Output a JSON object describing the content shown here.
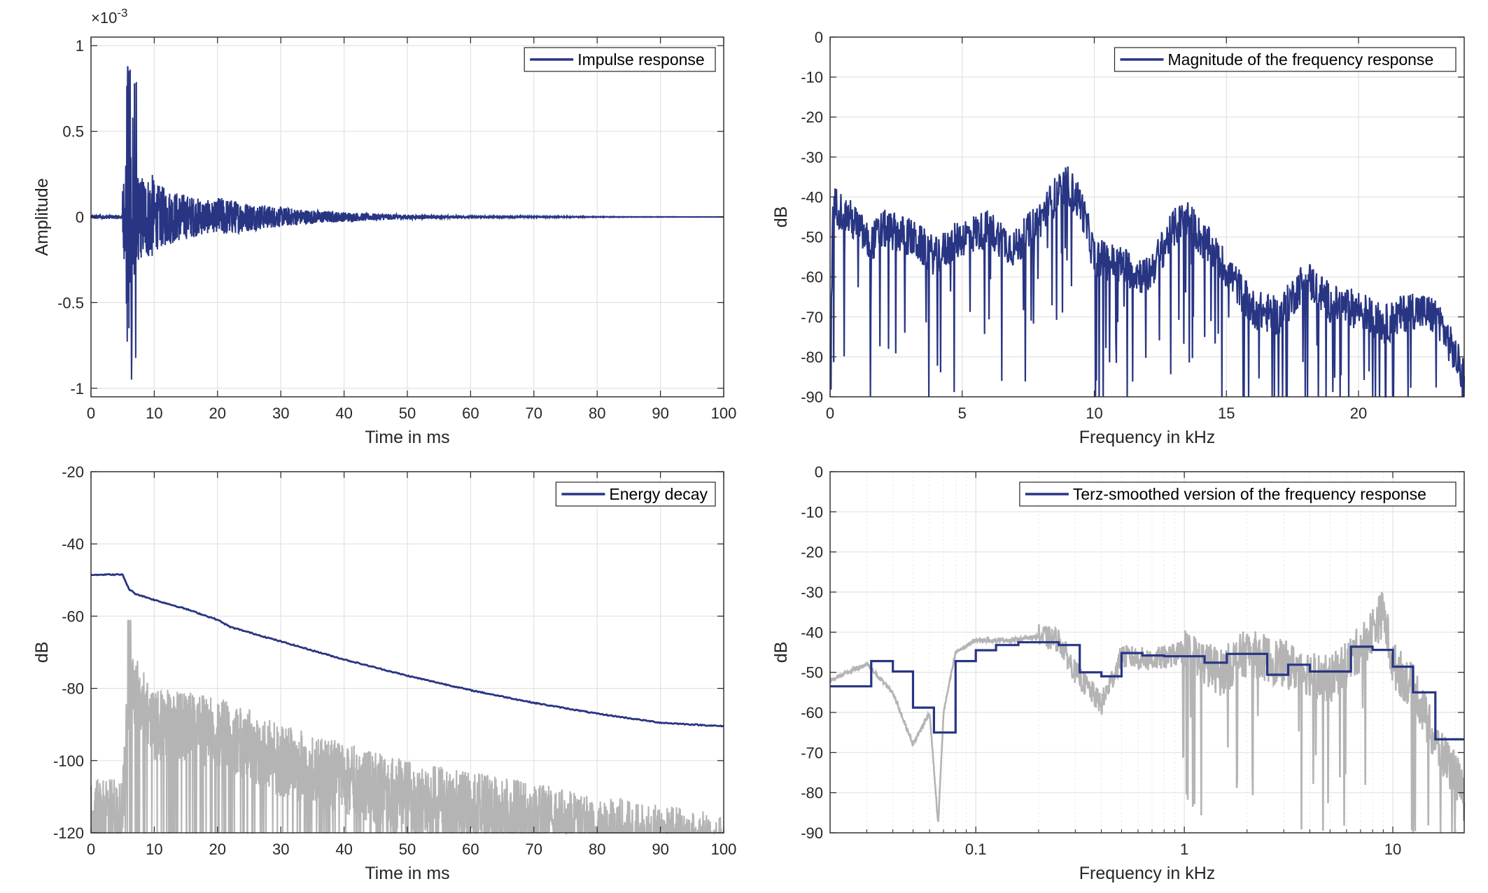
{
  "colors": {
    "series": "#283583",
    "gray": "#b4b4b4",
    "grid": "#e2e2e2",
    "axis": "#262626"
  },
  "chart_data": [
    {
      "type": "line",
      "xlabel": "Time in ms",
      "ylabel": "Amplitude",
      "xlim": [
        0,
        100
      ],
      "ylim": [
        -1.05,
        1.05
      ],
      "xticks": [
        0,
        10,
        20,
        30,
        40,
        50,
        60,
        70,
        80,
        90,
        100
      ],
      "xtick_labels": [
        "0",
        "10",
        "20",
        "30",
        "40",
        "50",
        "60",
        "70",
        "80",
        "90",
        "100"
      ],
      "yticks": [
        -1,
        -0.5,
        0,
        0.5,
        1
      ],
      "ytick_labels": [
        "-1",
        "-0.5",
        "0",
        "0.5",
        "1"
      ],
      "exponent_label": "×10",
      "exponent_power": "-3",
      "grid": true,
      "legend_position": "top-right",
      "series": [
        {
          "name": "Impulse response",
          "color": "#283583",
          "x": [
            0,
            2,
            4,
            5,
            5.5,
            5.8,
            6.0,
            6.2,
            6.4,
            6.6,
            6.8,
            7.0,
            7.5,
            8,
            9,
            10,
            12,
            14,
            16,
            18,
            20,
            25,
            30,
            40,
            50,
            60,
            80,
            100
          ],
          "y": [
            0,
            0.01,
            0.02,
            0.05,
            0.3,
            0.88,
            -0.65,
            0.86,
            -0.95,
            0.58,
            -0.2,
            0.2,
            -0.25,
            0.1,
            0.12,
            -0.2,
            0.12,
            -0.15,
            0.1,
            -0.22,
            0.08,
            0.05,
            0.04,
            0.02,
            0.01,
            0.005,
            0.002,
            0
          ]
        }
      ]
    },
    {
      "type": "line",
      "xlabel": "Frequency in kHz",
      "ylabel": "dB",
      "xlim": [
        0,
        24
      ],
      "ylim": [
        -90,
        0
      ],
      "xticks": [
        0,
        5,
        10,
        15,
        20
      ],
      "xtick_labels": [
        "0",
        "5",
        "10",
        "15",
        "20"
      ],
      "yticks": [
        0,
        -10,
        -20,
        -30,
        -40,
        -50,
        -60,
        -70,
        -80,
        -90
      ],
      "ytick_labels": [
        "0",
        "-10",
        "-20",
        "-30",
        "-40",
        "-50",
        "-60",
        "-70",
        "-80",
        "-90"
      ],
      "grid": true,
      "legend_position": "top-right",
      "series": [
        {
          "name": "Magnitude of the frequency response",
          "color": "#283583",
          "x": [
            0,
            0.1,
            0.2,
            1,
            1.5,
            2,
            3,
            4,
            5,
            6,
            7,
            8,
            8.5,
            9,
            9.5,
            10,
            11,
            12,
            13,
            13.5,
            14,
            15,
            16,
            17,
            18,
            19,
            20,
            21,
            22,
            23,
            24
          ],
          "y": [
            -88,
            -45,
            -42,
            -47,
            -52,
            -48,
            -50,
            -55,
            -50,
            -48,
            -53,
            -45,
            -40,
            -37,
            -42,
            -55,
            -57,
            -60,
            -48,
            -45,
            -50,
            -58,
            -68,
            -70,
            -60,
            -67,
            -68,
            -72,
            -68,
            -70,
            -85
          ]
        }
      ]
    },
    {
      "type": "line",
      "xlabel": "Time in ms",
      "ylabel": "dB",
      "xlim": [
        0,
        100
      ],
      "ylim": [
        -120,
        -20
      ],
      "xticks": [
        0,
        10,
        20,
        30,
        40,
        50,
        60,
        70,
        80,
        90,
        100
      ],
      "xtick_labels": [
        "0",
        "10",
        "20",
        "30",
        "40",
        "50",
        "60",
        "70",
        "80",
        "90",
        "100"
      ],
      "yticks": [
        -20,
        -40,
        -60,
        -80,
        -100,
        -120
      ],
      "ytick_labels": [
        "-20",
        "-40",
        "-60",
        "-80",
        "-100",
        "-120"
      ],
      "grid": true,
      "legend_position": "top-right",
      "series": [
        {
          "name": "Energy decay",
          "color": "#283583",
          "x": [
            0,
            5,
            5.5,
            6,
            7,
            10,
            15,
            20,
            22,
            25,
            30,
            40,
            50,
            60,
            70,
            80,
            90,
            100
          ],
          "y": [
            -48.5,
            -48.5,
            -50.5,
            -52.5,
            -53.8,
            -55.5,
            -58,
            -61,
            -63,
            -64.5,
            -67,
            -72,
            -76.5,
            -80.5,
            -84,
            -87,
            -89.5,
            -90.5
          ]
        },
        {
          "color": "#b4b4b4",
          "x": [
            0,
            5,
            6,
            10,
            20,
            30,
            40,
            50,
            60,
            70,
            80,
            90,
            100
          ],
          "y": [
            -105,
            -105,
            -68,
            -80,
            -82,
            -90,
            -95,
            -100,
            -103,
            -106,
            -110,
            -112,
            -115
          ]
        }
      ]
    },
    {
      "type": "line",
      "xlabel": "Frequency in kHz",
      "ylabel": "dB",
      "xscale": "log",
      "xlim": [
        0.02,
        22
      ],
      "ylim": [
        -90,
        0
      ],
      "xticks": [
        0.1,
        1,
        10
      ],
      "xtick_labels": [
        "0.1",
        "1",
        "10"
      ],
      "yticks": [
        0,
        -10,
        -20,
        -30,
        -40,
        -50,
        -60,
        -70,
        -80,
        -90
      ],
      "ytick_labels": [
        "0",
        "-10",
        "-20",
        "-30",
        "-40",
        "-50",
        "-60",
        "-70",
        "-80",
        "-90"
      ],
      "grid": true,
      "legend_position": "top-right",
      "series": [
        {
          "name": "Terz-smoothed version of the frequency response",
          "color": "#283583",
          "x": [
            0.02,
            0.025,
            0.0315,
            0.04,
            0.05,
            0.063,
            0.08,
            0.1,
            0.125,
            0.16,
            0.2,
            0.25,
            0.315,
            0.4,
            0.5,
            0.63,
            0.8,
            1,
            1.25,
            1.6,
            2,
            2.5,
            3.15,
            4,
            5,
            6.3,
            8,
            10,
            12.5,
            16,
            20
          ],
          "y": [
            -53.5,
            -53.5,
            -47.2,
            -49.8,
            -58.8,
            -65,
            -47.2,
            -44.5,
            -43.2,
            -42.5,
            -42.5,
            -43.2,
            -50,
            -51,
            -45.2,
            -45.8,
            -46,
            -46,
            -47.6,
            -45.4,
            -45.4,
            -50.6,
            -48.1,
            -49.8,
            -49.8,
            -43.6,
            -44.4,
            -48.6,
            -55,
            -66.7,
            -66.7
          ]
        },
        {
          "color": "#b4b4b4",
          "x": [
            0.02,
            0.03,
            0.04,
            0.05,
            0.06,
            0.066,
            0.07,
            0.08,
            0.1,
            0.15,
            0.2,
            0.25,
            0.3,
            0.4,
            0.5,
            0.7,
            1,
            1.5,
            2,
            3,
            4,
            5,
            7,
            9,
            10,
            13,
            16,
            20,
            22
          ],
          "y": [
            -52,
            -48,
            -55,
            -68,
            -60,
            -88,
            -60,
            -45,
            -42,
            -42,
            -41,
            -42,
            -50,
            -58,
            -46,
            -47,
            -45,
            -50,
            -45,
            -48,
            -50,
            -52,
            -44,
            -35,
            -48,
            -55,
            -68,
            -75,
            -82
          ]
        }
      ]
    }
  ]
}
